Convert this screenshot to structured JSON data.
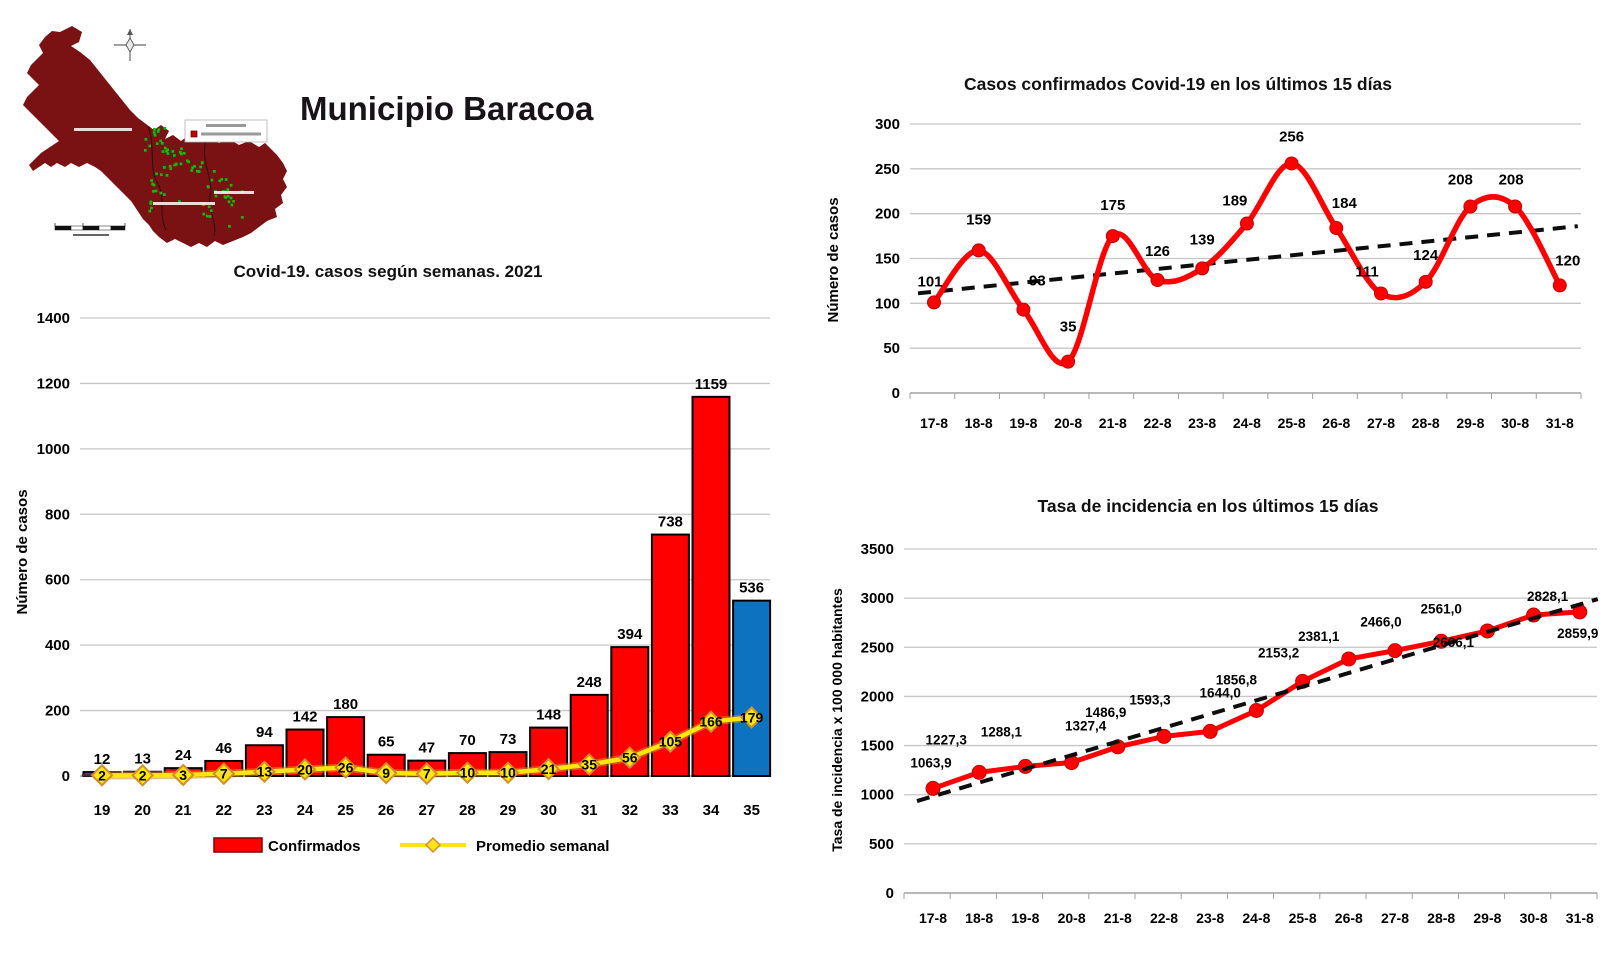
{
  "header": {
    "title": "Municipio Baracoa"
  },
  "map": {
    "land_color": "#7A1113",
    "dot_color": "#0BBE0B",
    "legend_box": true
  },
  "chart_data": [
    {
      "id": "weekly",
      "type": "bar",
      "title": "Covid-19. casos según semanas. 2021",
      "xlabel": "",
      "ylabel": "Número de casos",
      "ylim": [
        0,
        1400
      ],
      "yticks": [
        0,
        200,
        400,
        600,
        800,
        1000,
        1200,
        1400
      ],
      "grid": true,
      "legend_position": "bottom",
      "categories": [
        "19",
        "20",
        "21",
        "22",
        "23",
        "24",
        "25",
        "26",
        "27",
        "28",
        "29",
        "30",
        "31",
        "32",
        "33",
        "34",
        "35"
      ],
      "series": [
        {
          "name": "Confirmados",
          "type": "bar",
          "values": [
            12,
            13,
            24,
            46,
            94,
            142,
            180,
            65,
            47,
            70,
            73,
            148,
            248,
            394,
            738,
            1159,
            536
          ],
          "color": "#FF0000",
          "last_bar_color": "#0D72C0",
          "edge_color": "#000000"
        },
        {
          "name": "Promedio semanal",
          "type": "line",
          "values": [
            2,
            2,
            3,
            7,
            13,
            20,
            26,
            9,
            7,
            10,
            10,
            21,
            35,
            56,
            105,
            166,
            179
          ],
          "color": "#FFE60E",
          "marker": "diamond",
          "marker_edge": "#D28E2E"
        }
      ]
    },
    {
      "id": "cases15",
      "type": "line",
      "title": "Casos confirmados Covid-19 en los últimos 15 días",
      "xlabel": "",
      "ylabel": "Número de casos",
      "ylim": [
        0,
        300
      ],
      "yticks": [
        0,
        50,
        100,
        150,
        200,
        250,
        300
      ],
      "grid": true,
      "smooth": true,
      "line_color": "#FF0000",
      "categories": [
        "17-8",
        "18-8",
        "19-8",
        "20-8",
        "21-8",
        "22-8",
        "23-8",
        "24-8",
        "25-8",
        "26-8",
        "27-8",
        "28-8",
        "29-8",
        "30-8",
        "31-8"
      ],
      "values": [
        101,
        159,
        93,
        35,
        175,
        126,
        139,
        189,
        256,
        184,
        111,
        124,
        208,
        208,
        120
      ],
      "trendline": {
        "style": "dashed",
        "color": "#0D0D0D",
        "start": 113,
        "end": 184
      }
    },
    {
      "id": "incidence",
      "type": "line",
      "title": "Tasa de incidencia  en los últimos 15 días",
      "xlabel": "",
      "ylabel": "Tasa de incidencia x 100 000 habitantes",
      "ylim": [
        0,
        3500
      ],
      "yticks": [
        0,
        500,
        1000,
        1500,
        2000,
        2500,
        3000,
        3500
      ],
      "grid": true,
      "smooth": false,
      "line_color": "#FF0000",
      "categories": [
        "17-8",
        "18-8",
        "19-8",
        "20-8",
        "21-8",
        "22-8",
        "23-8",
        "24-8",
        "25-8",
        "26-8",
        "27-8",
        "28-8",
        "29-8",
        "30-8",
        "31-8"
      ],
      "values": [
        1063.9,
        1227.3,
        1288.1,
        1327.4,
        1486.9,
        1593.3,
        1644.0,
        1856.8,
        2153.2,
        2381.1,
        2466.0,
        2561.0,
        2666.1,
        2828.1,
        2859.9
      ],
      "value_labels": [
        "1063,9",
        "1227,3",
        "1288,1",
        "1327,4",
        "1486,9",
        "1593,3",
        "1644,0",
        "1856,8",
        "2153,2",
        "2381,1",
        "2466,0",
        "2561,0",
        "2666,1",
        "2828,1",
        "2859,9"
      ],
      "trendline": {
        "style": "dashed",
        "color": "#0D0D0D",
        "start": 984,
        "end": 2936
      }
    }
  ]
}
